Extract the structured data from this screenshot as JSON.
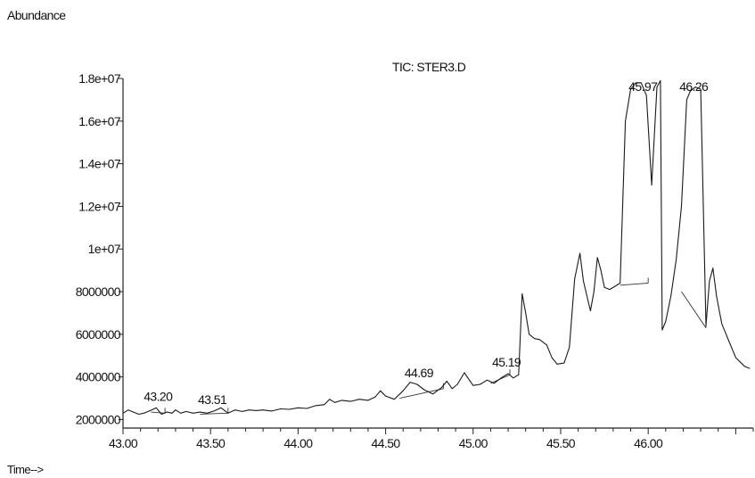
{
  "chart_data": {
    "type": "line",
    "title": "TIC: STER3.D",
    "ylabel": "Abundance",
    "xlabel": "Time-->",
    "xlim": [
      43.0,
      46.6
    ],
    "ylim": [
      1600000,
      18000000
    ],
    "x_ticks": [
      43.0,
      43.5,
      44.0,
      44.5,
      45.0,
      45.5,
      46.0
    ],
    "x_tick_labels": [
      "43.00",
      "43.50",
      "44.00",
      "44.50",
      "45.00",
      "45.50",
      "46.00"
    ],
    "y_ticks": [
      2000000,
      4000000,
      6000000,
      8000000,
      10000000,
      12000000,
      14000000,
      16000000,
      18000000
    ],
    "y_tick_labels": [
      "2000000",
      "4000000",
      "6000000",
      "8000000",
      "1e+07",
      "1.2e+07",
      "1.4e+07",
      "1.6e+07",
      "1.8e+07"
    ],
    "grid": false,
    "series": [
      {
        "points": [
          [
            43.0,
            2300000
          ],
          [
            43.03,
            2450000
          ],
          [
            43.06,
            2350000
          ],
          [
            43.09,
            2250000
          ],
          [
            43.12,
            2300000
          ],
          [
            43.15,
            2400000
          ],
          [
            43.19,
            2550000
          ],
          [
            43.22,
            2250000
          ],
          [
            43.25,
            2350000
          ],
          [
            43.28,
            2300000
          ],
          [
            43.3,
            2450000
          ],
          [
            43.33,
            2300000
          ],
          [
            43.36,
            2380000
          ],
          [
            43.4,
            2300000
          ],
          [
            43.44,
            2350000
          ],
          [
            43.48,
            2300000
          ],
          [
            43.52,
            2400000
          ],
          [
            43.56,
            2550000
          ],
          [
            43.6,
            2300000
          ],
          [
            43.64,
            2450000
          ],
          [
            43.68,
            2380000
          ],
          [
            43.72,
            2450000
          ],
          [
            43.76,
            2420000
          ],
          [
            43.8,
            2450000
          ],
          [
            43.85,
            2400000
          ],
          [
            43.9,
            2500000
          ],
          [
            43.95,
            2480000
          ],
          [
            44.0,
            2550000
          ],
          [
            44.05,
            2520000
          ],
          [
            44.1,
            2650000
          ],
          [
            44.15,
            2700000
          ],
          [
            44.18,
            2950000
          ],
          [
            44.21,
            2800000
          ],
          [
            44.25,
            2900000
          ],
          [
            44.3,
            2850000
          ],
          [
            44.35,
            2950000
          ],
          [
            44.4,
            2900000
          ],
          [
            44.44,
            3050000
          ],
          [
            44.47,
            3350000
          ],
          [
            44.5,
            3100000
          ],
          [
            44.55,
            2950000
          ],
          [
            44.6,
            3350000
          ],
          [
            44.64,
            3750000
          ],
          [
            44.68,
            3650000
          ],
          [
            44.72,
            3400000
          ],
          [
            44.77,
            3200000
          ],
          [
            44.82,
            3500000
          ],
          [
            44.85,
            3800000
          ],
          [
            44.88,
            3450000
          ],
          [
            44.91,
            3650000
          ],
          [
            44.95,
            4200000
          ],
          [
            44.97,
            3950000
          ],
          [
            45.0,
            3600000
          ],
          [
            45.04,
            3650000
          ],
          [
            45.08,
            3850000
          ],
          [
            45.12,
            3700000
          ],
          [
            45.16,
            3950000
          ],
          [
            45.2,
            4150000
          ],
          [
            45.23,
            3950000
          ],
          [
            45.26,
            4100000
          ],
          [
            45.28,
            7900000
          ],
          [
            45.3,
            7000000
          ],
          [
            45.32,
            6000000
          ],
          [
            45.35,
            5800000
          ],
          [
            45.38,
            5750000
          ],
          [
            45.42,
            5500000
          ],
          [
            45.45,
            4900000
          ],
          [
            45.48,
            4600000
          ],
          [
            45.52,
            4650000
          ],
          [
            45.55,
            5400000
          ],
          [
            45.58,
            8600000
          ],
          [
            45.61,
            9800000
          ],
          [
            45.63,
            8500000
          ],
          [
            45.65,
            7800000
          ],
          [
            45.67,
            7100000
          ],
          [
            45.69,
            8000000
          ],
          [
            45.71,
            9600000
          ],
          [
            45.73,
            9000000
          ],
          [
            45.75,
            8200000
          ],
          [
            45.78,
            8100000
          ],
          [
            45.84,
            8400000
          ],
          [
            45.87,
            16000000
          ],
          [
            45.9,
            17500000
          ],
          [
            45.93,
            17800000
          ],
          [
            45.96,
            17800000
          ],
          [
            45.99,
            17200000
          ],
          [
            46.02,
            13000000
          ],
          [
            46.05,
            17600000
          ],
          [
            46.07,
            17900000
          ],
          [
            46.08,
            6200000
          ],
          [
            46.1,
            6600000
          ],
          [
            46.13,
            7800000
          ],
          [
            46.16,
            9500000
          ],
          [
            46.19,
            12000000
          ],
          [
            46.22,
            17000000
          ],
          [
            46.24,
            17400000
          ],
          [
            46.27,
            17600000
          ],
          [
            46.3,
            17500000
          ],
          [
            46.33,
            6400000
          ],
          [
            46.35,
            8500000
          ],
          [
            46.37,
            9100000
          ],
          [
            46.39,
            7800000
          ],
          [
            46.42,
            6500000
          ],
          [
            46.46,
            5700000
          ],
          [
            46.5,
            4900000
          ],
          [
            46.55,
            4500000
          ],
          [
            46.58,
            4400000
          ]
        ]
      }
    ],
    "peak_labels": [
      {
        "label": "43.20",
        "x": 43.2,
        "y": 2550000
      },
      {
        "label": "43.51",
        "x": 43.51,
        "y": 2400000
      },
      {
        "label": "44.69",
        "x": 44.69,
        "y": 3650000
      },
      {
        "label": "45.19",
        "x": 45.19,
        "y": 4150000
      },
      {
        "label": "45.97",
        "x": 45.97,
        "y": 17800000
      },
      {
        "label": "46.26",
        "x": 46.26,
        "y": 17600000
      }
    ],
    "integration_baselines": [
      [
        [
          43.16,
          2350000
        ],
        [
          43.24,
          2300000
        ]
      ],
      [
        [
          43.44,
          2250000
        ],
        [
          43.6,
          2300000
        ]
      ],
      [
        [
          44.58,
          3000000
        ],
        [
          44.83,
          3450000
        ]
      ],
      [
        [
          45.1,
          3700000
        ],
        [
          45.21,
          4100000
        ]
      ],
      [
        [
          45.84,
          8300000
        ],
        [
          46.0,
          8400000
        ]
      ],
      [
        [
          46.19,
          8000000
        ],
        [
          46.33,
          6300000
        ]
      ]
    ]
  }
}
